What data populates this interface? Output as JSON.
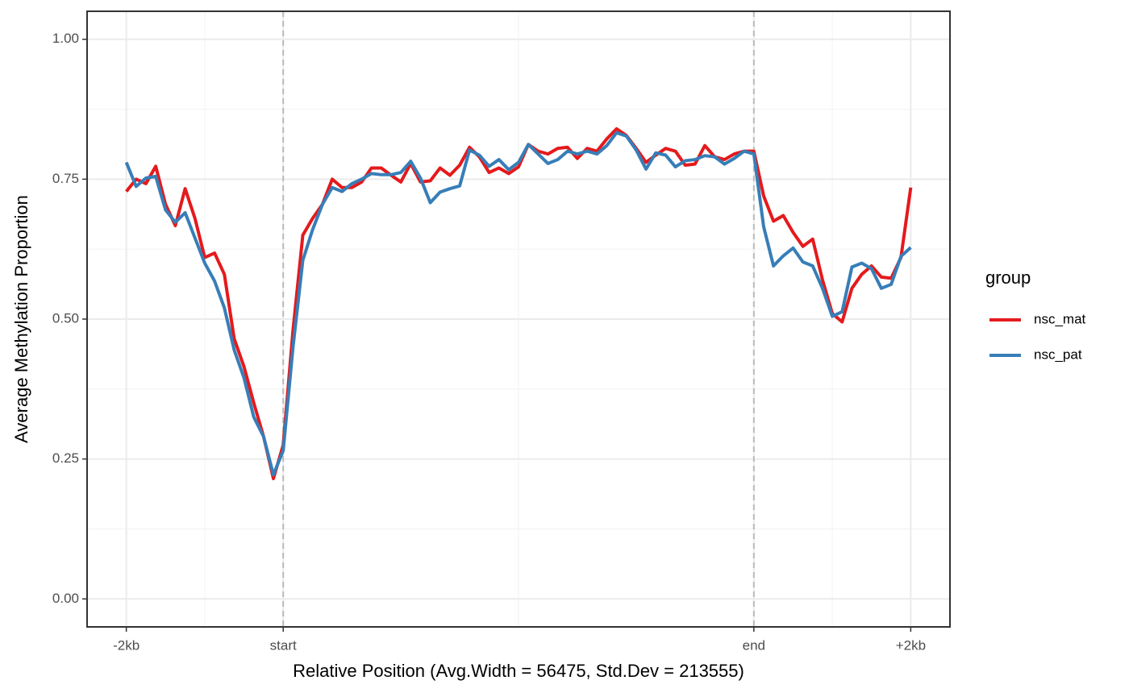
{
  "chart_data": {
    "type": "line",
    "x_label": "Relative Position (Avg.Width = 56475, Std.Dev = 213555)",
    "y_label": "Average Methylation Proportion",
    "legend_title": "group",
    "x": [
      0,
      0.0625,
      0.125,
      0.1875,
      0.25,
      0.3125,
      0.375,
      0.4375,
      0.5,
      0.5625,
      0.625,
      0.6875,
      0.75,
      0.8125,
      0.875,
      0.9375,
      1,
      1.0625,
      1.125,
      1.1875,
      1.25,
      1.3125,
      1.375,
      1.4375,
      1.5,
      1.5625,
      1.625,
      1.6875,
      1.75,
      1.8125,
      1.875,
      1.9375,
      2,
      2.0625,
      2.125,
      2.1875,
      2.25,
      2.3125,
      2.375,
      2.4375,
      2.5,
      2.5625,
      2.625,
      2.6875,
      2.75,
      2.8125,
      2.875,
      2.9375,
      3,
      3.0625,
      3.125,
      3.1875,
      3.25,
      3.3125,
      3.375,
      3.4375,
      3.5,
      3.5625,
      3.625,
      3.6875,
      3.75,
      3.8125,
      3.875,
      3.9375,
      4,
      4.0625,
      4.125,
      4.1875,
      4.25,
      4.3125,
      4.375,
      4.4375,
      4.5,
      4.5625,
      4.625,
      4.6875,
      4.75,
      4.8125,
      4.875,
      4.9375,
      5
    ],
    "series": [
      {
        "name": "nsc_mat",
        "color": "#e41a1c",
        "values": [
          0.728,
          0.75,
          0.742,
          0.773,
          0.705,
          0.667,
          0.733,
          0.68,
          0.61,
          0.618,
          0.58,
          0.465,
          0.415,
          0.35,
          0.29,
          0.215,
          0.275,
          0.48,
          0.65,
          0.68,
          0.705,
          0.75,
          0.735,
          0.735,
          0.745,
          0.77,
          0.77,
          0.757,
          0.745,
          0.778,
          0.745,
          0.747,
          0.77,
          0.757,
          0.775,
          0.807,
          0.79,
          0.762,
          0.77,
          0.76,
          0.772,
          0.812,
          0.8,
          0.795,
          0.805,
          0.807,
          0.787,
          0.805,
          0.8,
          0.822,
          0.84,
          0.828,
          0.805,
          0.78,
          0.793,
          0.805,
          0.8,
          0.775,
          0.777,
          0.81,
          0.79,
          0.785,
          0.795,
          0.8,
          0.8,
          0.72,
          0.675,
          0.685,
          0.655,
          0.63,
          0.643,
          0.57,
          0.51,
          0.495,
          0.555,
          0.58,
          0.595,
          0.575,
          0.573,
          0.61,
          0.735
        ]
      },
      {
        "name": "nsc_pat",
        "color": "#377eb8",
        "values": [
          0.78,
          0.737,
          0.752,
          0.755,
          0.695,
          0.673,
          0.69,
          0.645,
          0.6,
          0.568,
          0.52,
          0.445,
          0.395,
          0.325,
          0.29,
          0.222,
          0.265,
          0.45,
          0.605,
          0.66,
          0.705,
          0.735,
          0.728,
          0.742,
          0.75,
          0.76,
          0.758,
          0.758,
          0.762,
          0.782,
          0.752,
          0.708,
          0.727,
          0.733,
          0.738,
          0.802,
          0.793,
          0.773,
          0.785,
          0.767,
          0.78,
          0.812,
          0.795,
          0.778,
          0.785,
          0.8,
          0.795,
          0.8,
          0.795,
          0.81,
          0.833,
          0.827,
          0.802,
          0.768,
          0.797,
          0.793,
          0.772,
          0.783,
          0.785,
          0.792,
          0.79,
          0.777,
          0.787,
          0.8,
          0.795,
          0.665,
          0.595,
          0.613,
          0.627,
          0.602,
          0.595,
          0.555,
          0.505,
          0.513,
          0.593,
          0.6,
          0.59,
          0.555,
          0.562,
          0.612,
          0.628
        ]
      }
    ],
    "xlim": [
      -0.25,
      5.25
    ],
    "xticks": [
      {
        "value": 0,
        "label": "-2kb"
      },
      {
        "value": 1,
        "label": "start"
      },
      {
        "value": 4,
        "label": "end"
      },
      {
        "value": 5,
        "label": "+2kb"
      }
    ],
    "xminor": [
      0.5,
      2.5,
      4.5
    ],
    "vlines": [
      1,
      4
    ],
    "ylim": [
      -0.05,
      1.05
    ],
    "yticks": [
      {
        "value": 0,
        "label": "0.00"
      },
      {
        "value": 0.25,
        "label": "0.25"
      },
      {
        "value": 0.5,
        "label": "0.50"
      },
      {
        "value": 0.75,
        "label": "0.75"
      },
      {
        "value": 1,
        "label": "1.00"
      }
    ],
    "yminor": [
      0.125,
      0.375,
      0.625,
      0.875
    ],
    "grid": true,
    "legend": "right"
  }
}
